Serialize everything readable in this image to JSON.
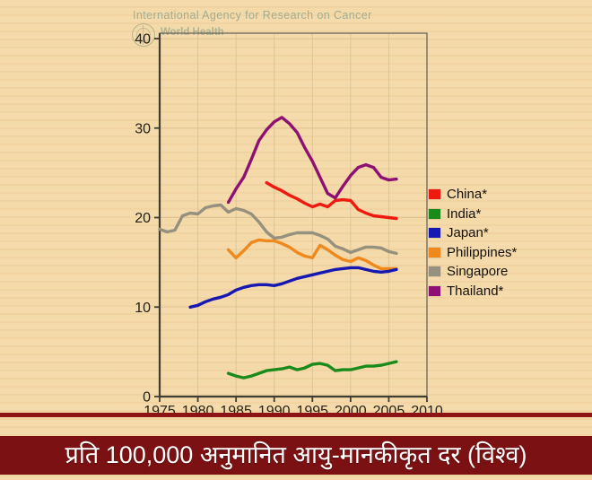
{
  "watermark": {
    "agency": "International Agency for Research on Cancer",
    "org": "World Health"
  },
  "banner": {
    "caption": "प्रति 100,000 अनुमानित आयु-मानकीकृत दर (विश्व)"
  },
  "colors": {
    "background": "#f4d8a6",
    "banner": "#7b1113",
    "divider": "#8c1415",
    "axis": "#3f3c33",
    "frame": "#6a665a",
    "grid": "#d8bd90",
    "tick_label": "#241f14",
    "caption_text": "#ffffff",
    "watermark": "#9eaa8e"
  },
  "chart_data": {
    "type": "line",
    "title": "",
    "caption": "प्रति 100,000 अनुमानित आयु-मानकीकृत दर (विश्व)",
    "xlabel": "",
    "ylabel": "",
    "xlim": [
      1975,
      2010
    ],
    "ylim": [
      0,
      40
    ],
    "x_ticks": [
      1975,
      1980,
      1985,
      1990,
      1995,
      2000,
      2005,
      2010
    ],
    "y_ticks": [
      0,
      10,
      20,
      30,
      40
    ],
    "grid": true,
    "legend_position": "right",
    "series": [
      {
        "name": "China*",
        "color": "#ee1a10",
        "x": [
          1989,
          1990,
          1991,
          1992,
          1993,
          1994,
          1995,
          1996,
          1997,
          1998,
          1999,
          2000,
          2001,
          2002,
          2003,
          2004,
          2005,
          2006
        ],
        "values": [
          23.9,
          23.4,
          23.0,
          22.5,
          22.1,
          21.6,
          21.2,
          21.5,
          21.2,
          21.9,
          22.0,
          21.9,
          20.9,
          20.5,
          20.2,
          20.1,
          20.0,
          19.9
        ]
      },
      {
        "name": "India*",
        "color": "#1a8a1a",
        "x": [
          1984,
          1985,
          1986,
          1987,
          1988,
          1989,
          1990,
          1991,
          1992,
          1993,
          1994,
          1995,
          1996,
          1997,
          1998,
          1999,
          2000,
          2001,
          2002,
          2003,
          2004,
          2005,
          2006
        ],
        "values": [
          2.6,
          2.3,
          2.1,
          2.3,
          2.6,
          2.9,
          3.0,
          3.1,
          3.3,
          3.0,
          3.2,
          3.6,
          3.7,
          3.5,
          2.9,
          3.0,
          3.0,
          3.2,
          3.4,
          3.4,
          3.5,
          3.7,
          3.9
        ]
      },
      {
        "name": "Japan*",
        "color": "#1717b2",
        "x": [
          1979,
          1980,
          1981,
          1982,
          1983,
          1984,
          1985,
          1986,
          1987,
          1988,
          1989,
          1990,
          1991,
          1992,
          1993,
          1994,
          1995,
          1996,
          1997,
          1998,
          1999,
          2000,
          2001,
          2002,
          2003,
          2004,
          2005,
          2006
        ],
        "values": [
          10.0,
          10.2,
          10.6,
          10.9,
          11.1,
          11.4,
          11.9,
          12.2,
          12.4,
          12.5,
          12.5,
          12.4,
          12.6,
          12.9,
          13.2,
          13.4,
          13.6,
          13.8,
          14.0,
          14.2,
          14.3,
          14.4,
          14.4,
          14.2,
          14.0,
          13.9,
          14.0,
          14.2
        ]
      },
      {
        "name": "Philippines*",
        "color": "#f0891d",
        "x": [
          1984,
          1985,
          1986,
          1987,
          1988,
          1989,
          1990,
          1991,
          1992,
          1993,
          1994,
          1995,
          1996,
          1997,
          1998,
          1999,
          2000,
          2001,
          2002,
          2003,
          2004,
          2005,
          2006
        ],
        "values": [
          16.4,
          15.5,
          16.3,
          17.2,
          17.5,
          17.4,
          17.4,
          17.1,
          16.7,
          16.1,
          15.7,
          15.5,
          16.9,
          16.4,
          15.8,
          15.3,
          15.1,
          15.5,
          15.2,
          14.7,
          14.3,
          14.3,
          14.3
        ]
      },
      {
        "name": "Singapore",
        "color": "#96917e",
        "x": [
          1975,
          1976,
          1977,
          1978,
          1979,
          1980,
          1981,
          1982,
          1983,
          1984,
          1985,
          1986,
          1987,
          1988,
          1989,
          1990,
          1991,
          1992,
          1993,
          1994,
          1995,
          1996,
          1997,
          1998,
          1999,
          2000,
          2001,
          2002,
          2003,
          2004,
          2005,
          2006
        ],
        "values": [
          18.7,
          18.4,
          18.6,
          20.2,
          20.5,
          20.4,
          21.1,
          21.3,
          21.4,
          20.6,
          21.0,
          20.8,
          20.4,
          19.5,
          18.4,
          17.7,
          17.8,
          18.1,
          18.3,
          18.3,
          18.3,
          18.0,
          17.6,
          16.8,
          16.5,
          16.1,
          16.4,
          16.7,
          16.7,
          16.6,
          16.2,
          16.0
        ]
      },
      {
        "name": "Thailand*",
        "color": "#8d1173",
        "x": [
          1984,
          1985,
          1986,
          1987,
          1988,
          1989,
          1990,
          1991,
          1992,
          1993,
          1994,
          1995,
          1996,
          1997,
          1998,
          1999,
          2000,
          2001,
          2002,
          2003,
          2004,
          2005,
          2006
        ],
        "values": [
          21.7,
          23.2,
          24.5,
          26.5,
          28.6,
          29.8,
          30.7,
          31.2,
          30.5,
          29.5,
          27.8,
          26.3,
          24.5,
          22.7,
          22.2,
          23.5,
          24.7,
          25.6,
          25.9,
          25.6,
          24.5,
          24.2,
          24.3
        ]
      }
    ]
  }
}
